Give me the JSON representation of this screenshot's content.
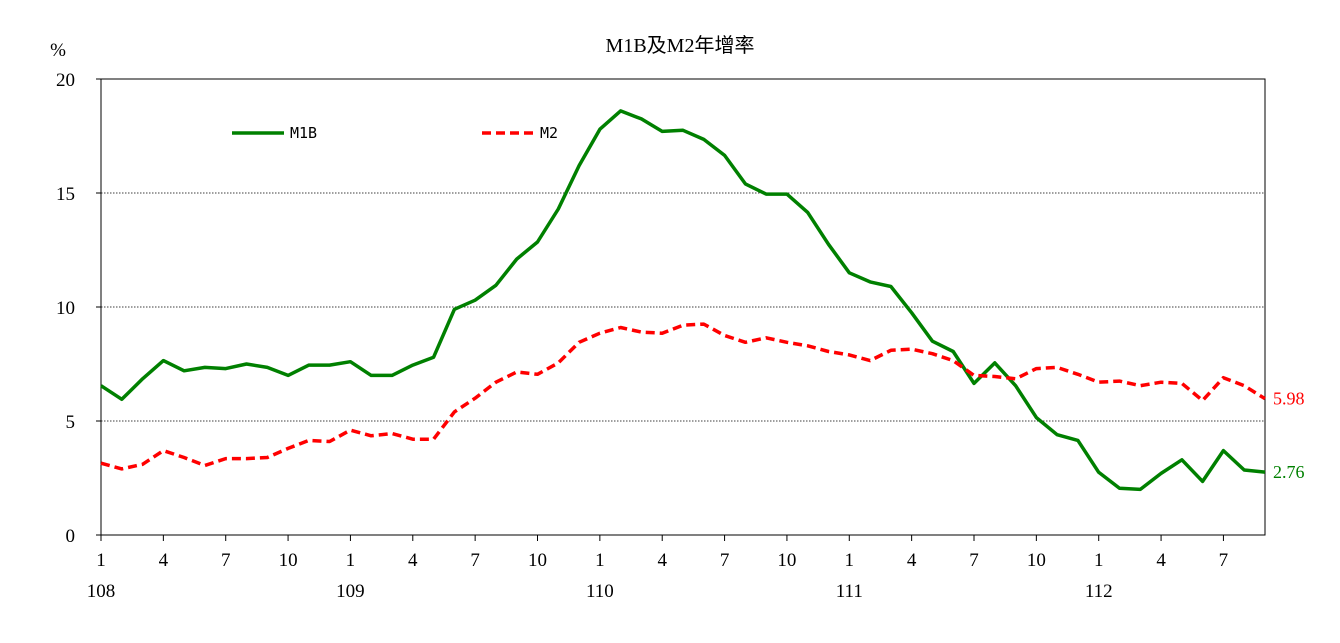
{
  "chart_data": {
    "type": "line",
    "title": "M1B及M2年增率",
    "ylabel": "%",
    "xlabel": "",
    "ylim": [
      0,
      20
    ],
    "yticks": [
      0,
      5,
      10,
      15,
      20
    ],
    "grid": "horizontal dotted at 5, 10, 15",
    "legend_position": "upper-left",
    "x_month_ticks": [
      "1",
      "4",
      "7",
      "10",
      "1",
      "4",
      "7",
      "10",
      "1",
      "4",
      "7",
      "10",
      "1",
      "4",
      "7",
      "10",
      "1",
      "4",
      "7"
    ],
    "x_year_labels": [
      "108",
      "109",
      "110",
      "111",
      "112"
    ],
    "series": [
      {
        "name": "M1B",
        "color": "#008000",
        "style": "solid",
        "end_label": "2.76",
        "values": [
          6.55,
          5.95,
          6.85,
          7.65,
          7.2,
          7.35,
          7.3,
          7.5,
          7.35,
          7.0,
          7.45,
          7.45,
          7.6,
          7.0,
          7.0,
          7.45,
          7.8,
          9.9,
          10.3,
          10.95,
          12.1,
          12.85,
          14.3,
          16.2,
          17.8,
          18.6,
          18.25,
          17.7,
          17.75,
          17.35,
          16.65,
          15.4,
          14.95,
          14.95,
          14.15,
          12.75,
          11.5,
          11.1,
          10.9,
          9.75,
          8.5,
          8.05,
          6.65,
          7.55,
          6.55,
          5.15,
          4.4,
          4.15,
          2.75,
          2.05,
          2.0,
          2.7,
          3.3,
          2.35,
          3.7,
          2.85,
          2.76
        ]
      },
      {
        "name": "M2",
        "color": "#ff0000",
        "style": "dashed",
        "end_label": "5.98",
        "values": [
          3.15,
          2.9,
          3.1,
          3.7,
          3.4,
          3.05,
          3.35,
          3.35,
          3.4,
          3.8,
          4.15,
          4.1,
          4.6,
          4.35,
          4.45,
          4.2,
          4.2,
          5.4,
          6.0,
          6.7,
          7.15,
          7.05,
          7.55,
          8.45,
          8.85,
          9.1,
          8.9,
          8.85,
          9.2,
          9.25,
          8.75,
          8.45,
          8.65,
          8.45,
          8.3,
          8.05,
          7.9,
          7.65,
          8.1,
          8.15,
          7.95,
          7.65,
          7.0,
          6.95,
          6.85,
          7.3,
          7.35,
          7.05,
          6.7,
          6.75,
          6.55,
          6.7,
          6.65,
          5.9,
          6.9,
          6.55,
          5.98
        ]
      }
    ]
  }
}
